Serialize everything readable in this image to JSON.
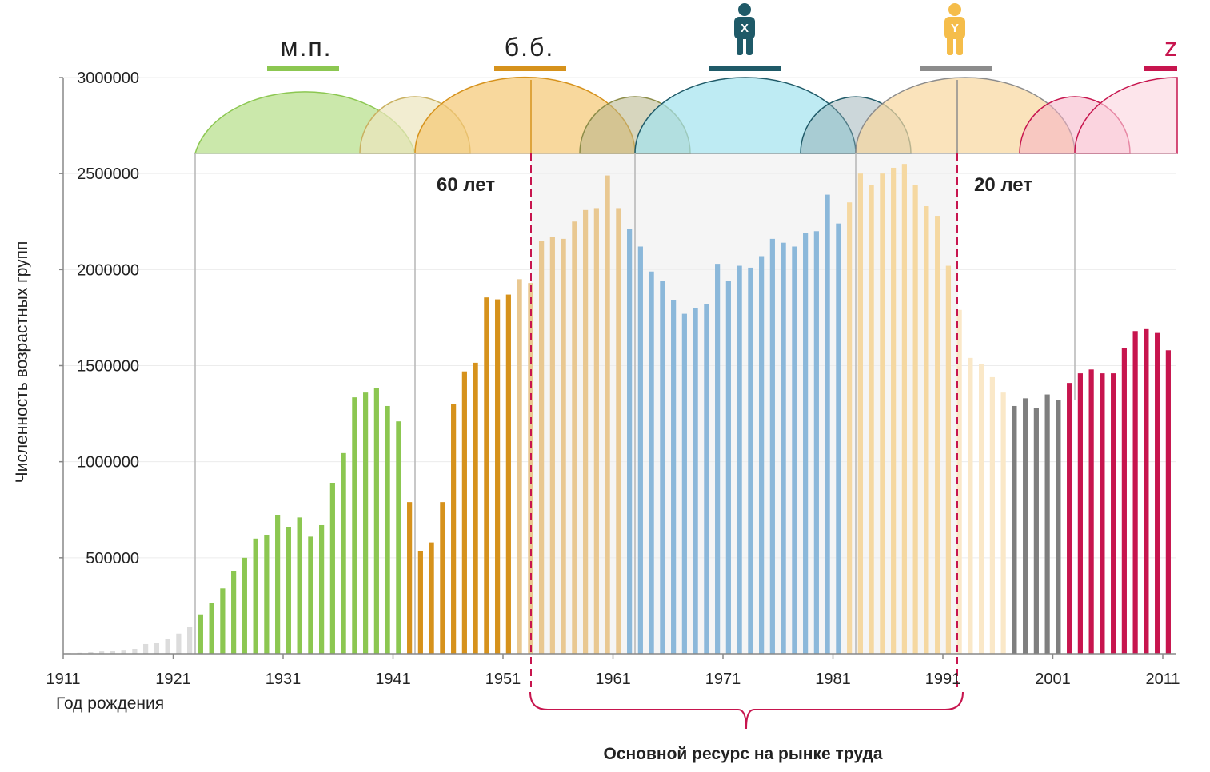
{
  "chart_data": {
    "type": "bar",
    "xlabel": "Год рождения",
    "ylabel": "Численность возрастных групп",
    "ylim": [
      0,
      3000000
    ],
    "xlim": [
      1911,
      2011
    ],
    "grid": true,
    "y_ticks": [
      "500000",
      "1000000",
      "1500000",
      "2000000",
      "2500000",
      "3000000"
    ],
    "x_ticks": [
      "1911",
      "1921",
      "1931",
      "1941",
      "1951",
      "1961",
      "1971",
      "1981",
      "1991",
      "2001",
      "2011"
    ],
    "x": [
      1911,
      1912,
      1913,
      1914,
      1915,
      1916,
      1917,
      1918,
      1919,
      1920,
      1921,
      1922,
      1923,
      1924,
      1925,
      1926,
      1927,
      1928,
      1929,
      1930,
      1931,
      1932,
      1933,
      1934,
      1935,
      1936,
      1937,
      1938,
      1939,
      1940,
      1941,
      1942,
      1943,
      1944,
      1945,
      1946,
      1947,
      1948,
      1949,
      1950,
      1951,
      1952,
      1953,
      1954,
      1955,
      1956,
      1957,
      1958,
      1959,
      1960,
      1961,
      1962,
      1963,
      1964,
      1965,
      1966,
      1967,
      1968,
      1969,
      1970,
      1971,
      1972,
      1973,
      1974,
      1975,
      1976,
      1977,
      1978,
      1979,
      1980,
      1981,
      1982,
      1983,
      1984,
      1985,
      1986,
      1987,
      1988,
      1989,
      1990,
      1991,
      1992,
      1993,
      1994,
      1995,
      1996,
      1997,
      1998,
      1999,
      2000,
      2001,
      2002,
      2003,
      2004,
      2005,
      2006,
      2007,
      2008,
      2009,
      2010,
      2011
    ],
    "values": [
      3000,
      5000,
      8000,
      12000,
      16000,
      20000,
      25000,
      50000,
      55000,
      75000,
      105000,
      140000,
      205000,
      265000,
      340000,
      430000,
      500000,
      600000,
      620000,
      720000,
      660000,
      710000,
      610000,
      670000,
      890000,
      1045000,
      1335000,
      1360000,
      1385000,
      1290000,
      1210000,
      790000,
      535000,
      580000,
      790000,
      1300000,
      1470000,
      1515000,
      1855000,
      1845000,
      1870000,
      1950000,
      1930000,
      2150000,
      2170000,
      2160000,
      2250000,
      2310000,
      2320000,
      2490000,
      2320000,
      2210000,
      2120000,
      1990000,
      1940000,
      1840000,
      1770000,
      1800000,
      1820000,
      2030000,
      1940000,
      2020000,
      2010000,
      2070000,
      2160000,
      2140000,
      2120000,
      2190000,
      2200000,
      2390000,
      2240000,
      2350000,
      2500000,
      2440000,
      2500000,
      2530000,
      2550000,
      2440000,
      2330000,
      2280000,
      2020000,
      1790000,
      1540000,
      1510000,
      1440000,
      1360000,
      1290000,
      1330000,
      1280000,
      1350000,
      1320000,
      1410000,
      1460000,
      1480000,
      1460000,
      1460000,
      1590000,
      1680000,
      1690000,
      1670000,
      1580000
    ],
    "colors": {
      "grey_light": "#dcdcdc",
      "greatest": "#8cc751",
      "boomers": "#d6921c",
      "boomers_light": "#e9c891",
      "x": "#8bb8da",
      "y_light": "#f5d8a1",
      "y_pale": "#fae8c8",
      "grey": "#7f7f7f",
      "z": "#c7154e",
      "highlight": "#c7154e"
    },
    "generation_labels": [
      {
        "text": "м.п.",
        "color": "#8cc751"
      },
      {
        "text": "б.б.",
        "color": "#d6921c"
      },
      {
        "text": "",
        "color": "#1f5a68",
        "icon": "person-x-icon",
        "icon_letter": "X"
      },
      {
        "text": "",
        "color": "#8c8c8c",
        "icon": "person-y-icon",
        "icon_letter": "Y"
      },
      {
        "text": "z",
        "color": "#c7154e"
      }
    ],
    "annotations": {
      "left": "60 лет",
      "right": "20 лет",
      "bracket": "Основной ресурс на рынке труда"
    }
  }
}
